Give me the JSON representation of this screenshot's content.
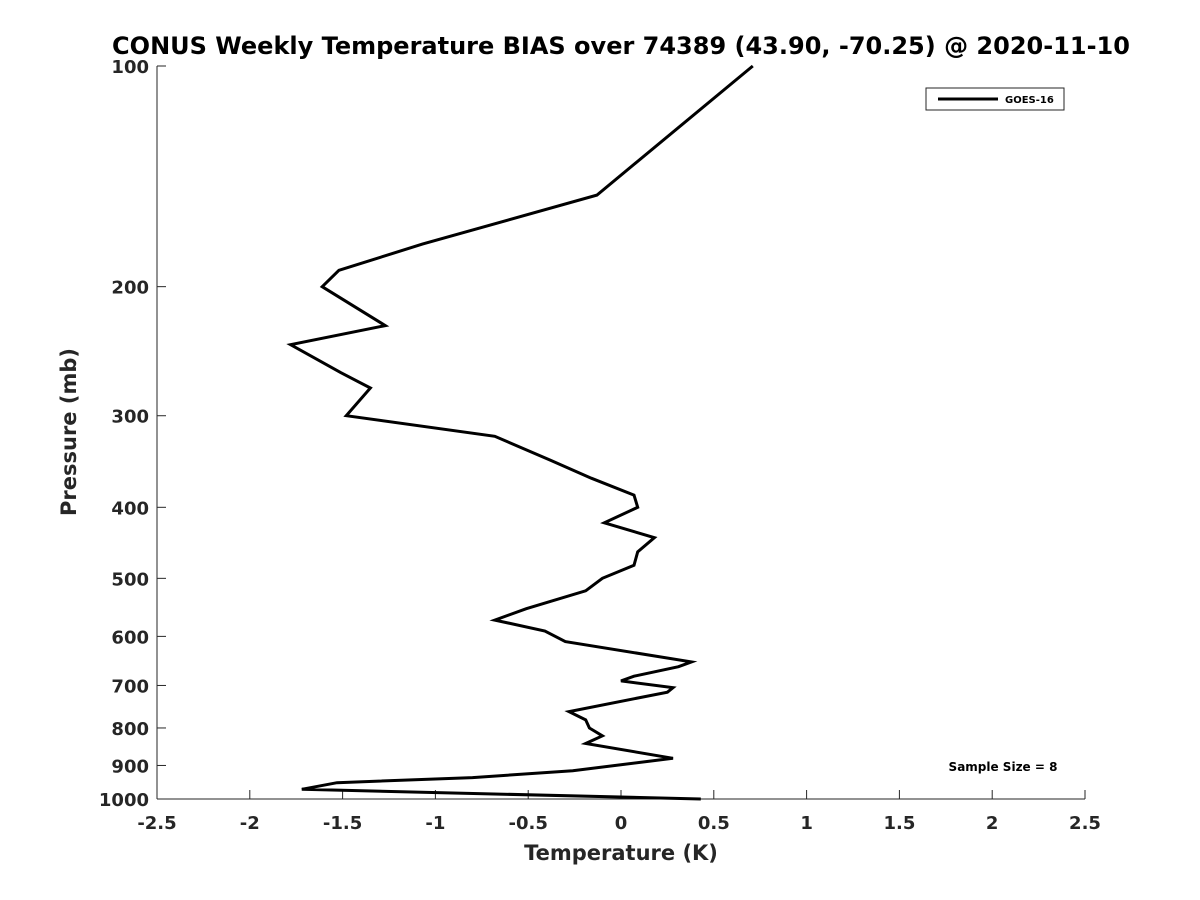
{
  "chart_data": {
    "type": "line",
    "title": "CONUS Weekly Temperature BIAS over 74389 (43.90, -70.25) @ 2020-11-10",
    "xlabel": "Temperature (K)",
    "ylabel": "Pressure (mb)",
    "xlim": [
      -2.5,
      2.5
    ],
    "ylim": [
      100,
      1000
    ],
    "y_scale": "log",
    "y_reversed": true,
    "x_ticks": [
      -2.5,
      -2,
      -1.5,
      -1,
      -0.5,
      0,
      0.5,
      1,
      1.5,
      2,
      2.5
    ],
    "x_tick_labels": [
      "-2.5",
      "-2",
      "-1.5",
      "-1",
      "-0.5",
      "0",
      "0.5",
      "1",
      "1.5",
      "2",
      "2.5"
    ],
    "y_ticks": [
      100,
      200,
      300,
      400,
      500,
      600,
      700,
      800,
      900,
      1000
    ],
    "y_tick_labels": [
      "100",
      "200",
      "300",
      "400",
      "500",
      "600",
      "700",
      "800",
      "900",
      "1000"
    ],
    "grid": false,
    "legend_position": "top-right",
    "series": [
      {
        "name": "GOES-16",
        "color": "#000000",
        "points": [
          [
            0.71,
            100
          ],
          [
            -0.13,
            150
          ],
          [
            -1.07,
            175
          ],
          [
            -1.52,
            190
          ],
          [
            -1.61,
            200
          ],
          [
            -1.27,
            226
          ],
          [
            -1.78,
            240
          ],
          [
            -1.51,
            262
          ],
          [
            -1.35,
            275
          ],
          [
            -1.48,
            300
          ],
          [
            -0.68,
            320
          ],
          [
            -0.38,
            345
          ],
          [
            -0.16,
            365
          ],
          [
            0.07,
            385
          ],
          [
            0.09,
            400
          ],
          [
            -0.09,
            420
          ],
          [
            0.18,
            440
          ],
          [
            0.09,
            460
          ],
          [
            0.07,
            480
          ],
          [
            -0.1,
            500
          ],
          [
            -0.19,
            520
          ],
          [
            -0.51,
            550
          ],
          [
            -0.68,
            570
          ],
          [
            -0.41,
            590
          ],
          [
            -0.3,
            610
          ],
          [
            0.38,
            650
          ],
          [
            0.31,
            660
          ],
          [
            0.07,
            680
          ],
          [
            0.0,
            690
          ],
          [
            0.28,
            705
          ],
          [
            0.25,
            715
          ],
          [
            -0.28,
            760
          ],
          [
            -0.19,
            780
          ],
          [
            -0.17,
            800
          ],
          [
            -0.1,
            820
          ],
          [
            -0.19,
            840
          ],
          [
            0.28,
            880
          ],
          [
            -0.26,
            915
          ],
          [
            -0.8,
            935
          ],
          [
            -1.53,
            950
          ],
          [
            -1.72,
            970
          ],
          [
            0.43,
            1000
          ]
        ]
      }
    ],
    "annotations": [
      {
        "text": "Sample Size = 8"
      }
    ]
  },
  "colors": {
    "background": "#ffffff",
    "axis": "#262626",
    "line": "#000000"
  }
}
